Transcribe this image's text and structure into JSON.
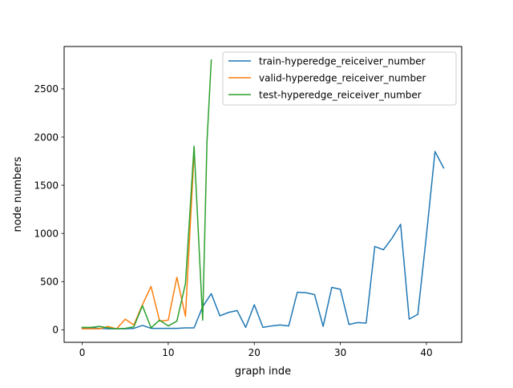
{
  "chart_data": {
    "type": "line",
    "title": "",
    "xlabel": "graph inde",
    "ylabel": "node numbers",
    "xlim": [
      -2.1,
      44.1
    ],
    "ylim": [
      -130,
      2940
    ],
    "xticks": [
      0,
      10,
      20,
      30,
      40
    ],
    "yticks": [
      0,
      500,
      1000,
      1500,
      2000,
      2500
    ],
    "grid": false,
    "legend_position": "top-right",
    "series": [
      {
        "name": "train-hyperedge_reiceiver_number",
        "color": "#1f77b4",
        "x": [
          0,
          1,
          2,
          3,
          4,
          5,
          6,
          7,
          8,
          9,
          10,
          11,
          12,
          13,
          14,
          15,
          16,
          17,
          18,
          19,
          20,
          21,
          22,
          23,
          24,
          25,
          26,
          27,
          28,
          29,
          30,
          31,
          32,
          33,
          34,
          35,
          36,
          37,
          38,
          39,
          40,
          41,
          42
        ],
        "y": [
          20,
          20,
          15,
          10,
          10,
          10,
          15,
          45,
          15,
          15,
          15,
          15,
          20,
          20,
          240,
          375,
          145,
          180,
          200,
          25,
          260,
          25,
          40,
          50,
          40,
          390,
          385,
          365,
          35,
          440,
          420,
          55,
          75,
          70,
          865,
          830,
          950,
          1095,
          110,
          160,
          980,
          1850,
          1680
        ]
      },
      {
        "name": "valid-hyperedge_reiceiver_number",
        "color": "#ff7f0e",
        "x": [
          0,
          1,
          2,
          3,
          4,
          5,
          6,
          7,
          8,
          9,
          10,
          11,
          12,
          13
        ],
        "y": [
          10,
          10,
          10,
          35,
          10,
          110,
          50,
          260,
          450,
          90,
          100,
          545,
          140,
          1830
        ]
      },
      {
        "name": "test-hyperedge_reiceiver_number",
        "color": "#2ca02c",
        "x": [
          0,
          1,
          2,
          3,
          4,
          5,
          6,
          7,
          8,
          9,
          10,
          11,
          12,
          13,
          14,
          14.5,
          15
        ],
        "y": [
          25,
          25,
          35,
          20,
          10,
          15,
          30,
          250,
          20,
          100,
          40,
          90,
          480,
          1905,
          100,
          1950,
          2800
        ]
      }
    ]
  }
}
